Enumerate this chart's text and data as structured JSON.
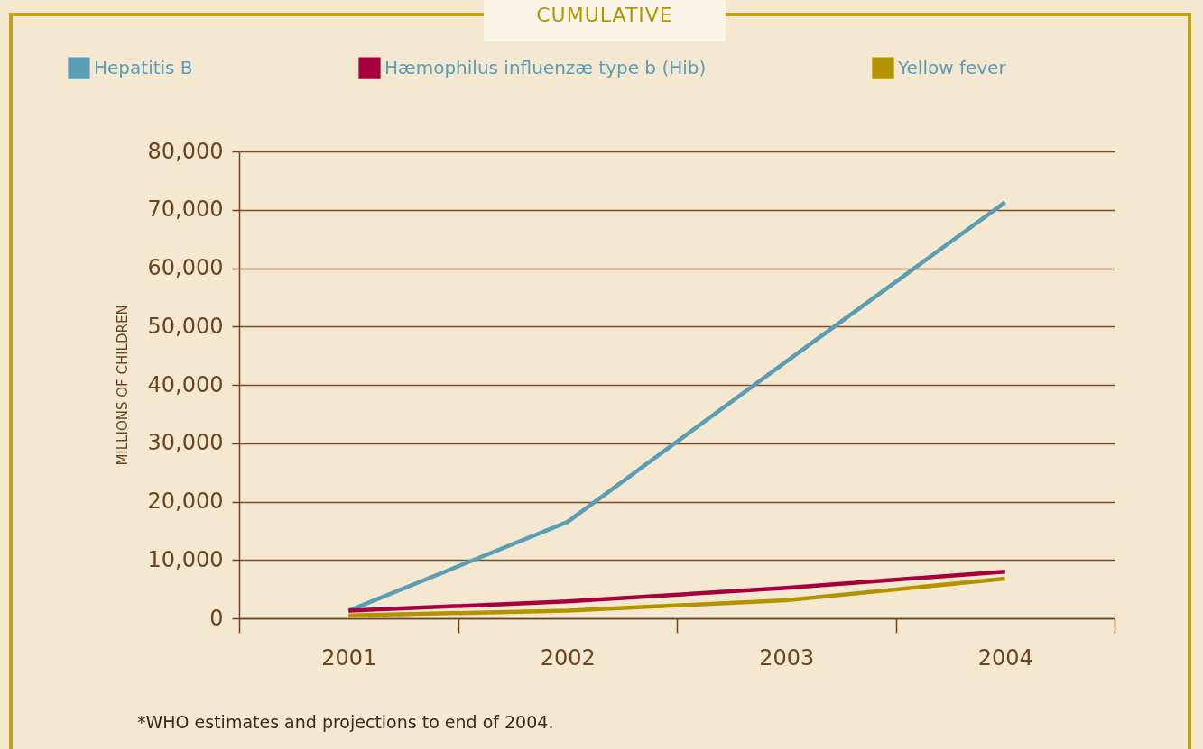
{
  "chart_data": {
    "type": "line",
    "title": "CUMULATIVE",
    "ylabel": "MILLIONS OF CHILDREN",
    "categories": [
      "2001",
      "2002",
      "2003",
      "2004"
    ],
    "series": [
      {
        "name": "Hepatitis B",
        "color": "#5a9db5",
        "values": [
          1300,
          16500,
          44000,
          71300
        ]
      },
      {
        "name": "Hæmophilus influenzæ type b (Hib)",
        "color": "#a8003f",
        "values": [
          1300,
          2900,
          5200,
          8000
        ]
      },
      {
        "name": "Yellow fever",
        "color": "#b39400",
        "values": [
          500,
          1300,
          3100,
          6800
        ]
      }
    ],
    "ylim": [
      0,
      80000
    ],
    "yticks": [
      0,
      {
        "value": 10000,
        "label": "10,000"
      },
      {
        "value": 20000,
        "label": "20,000"
      },
      {
        "value": 30000,
        "label": "30,000"
      },
      {
        "value": 40000,
        "label": "40,000"
      },
      {
        "value": 50000,
        "label": "50,000"
      },
      {
        "value": 60000,
        "label": "60,000"
      },
      {
        "value": 70000,
        "label": "70,000"
      },
      {
        "value": 80000,
        "label": "80,000"
      }
    ],
    "grid": "y",
    "legend": "top",
    "marker": "none",
    "line_style": "solid",
    "annotations": [
      "*WHO estimates and projections to end of 2004."
    ]
  }
}
